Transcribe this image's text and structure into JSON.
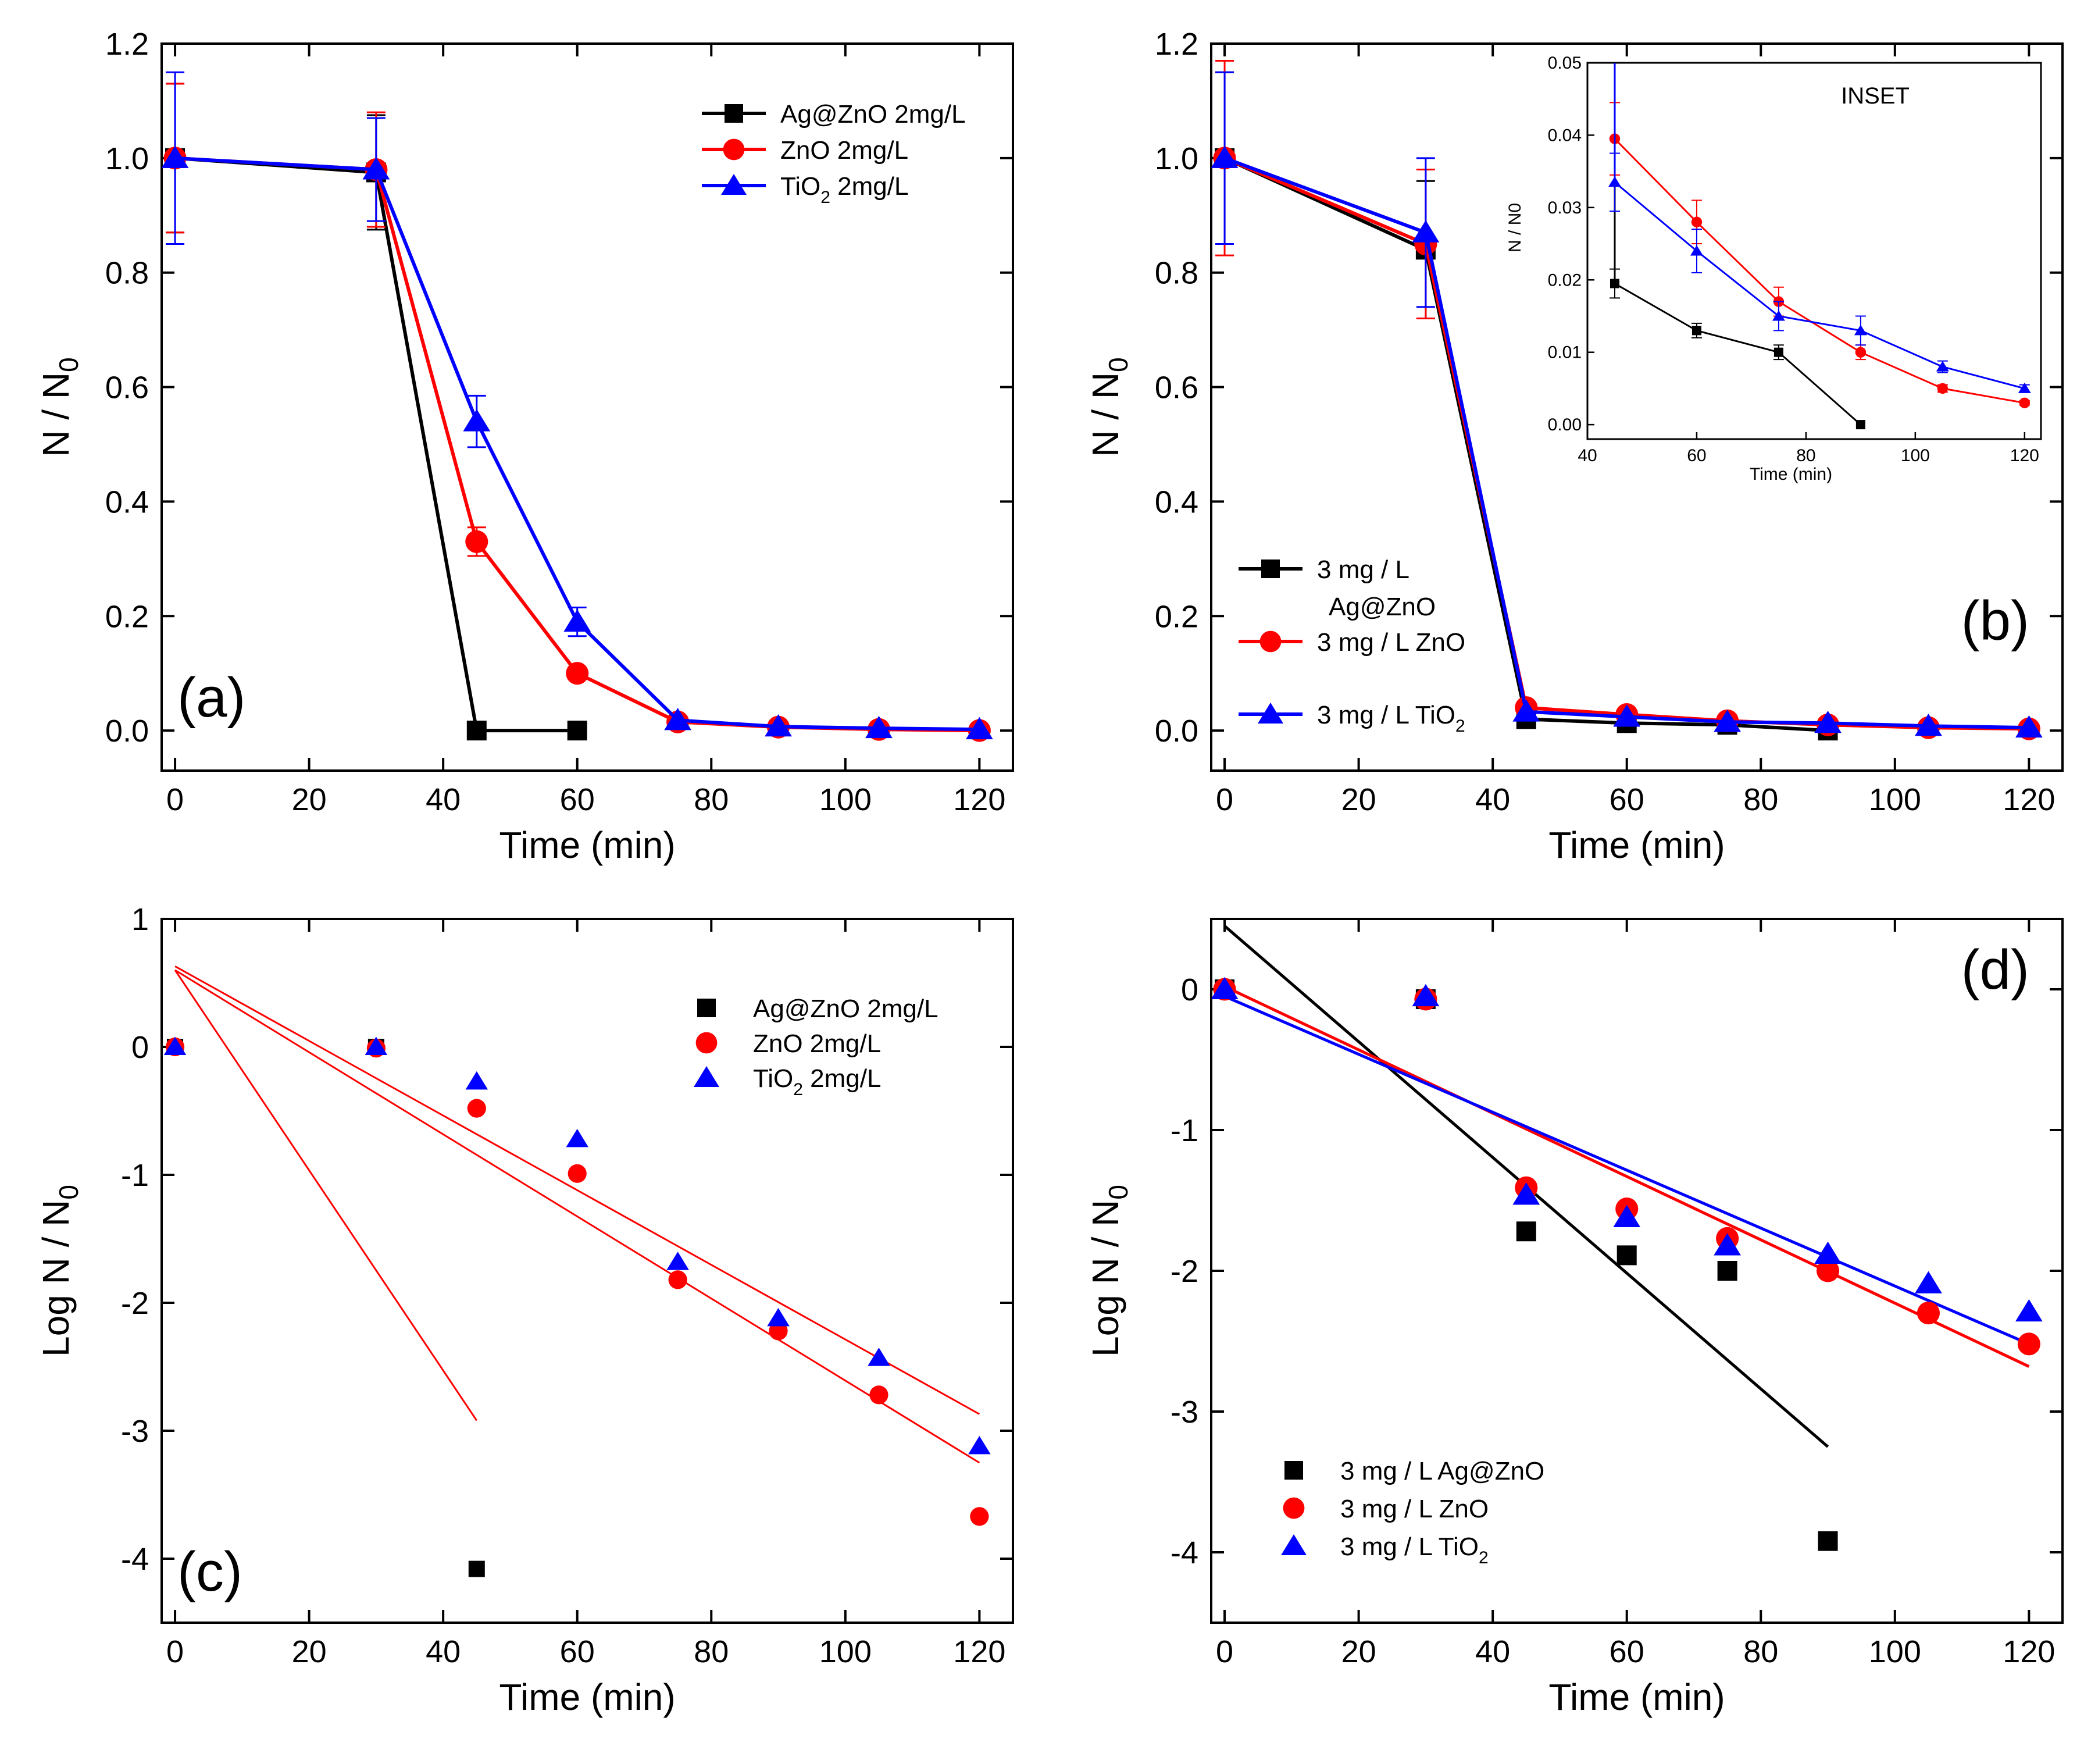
{
  "figure": {
    "series_names": [
      "Ag@ZnO 2mg/L",
      "ZnO 2mg/L",
      "TiO2 2mg/L"
    ],
    "colors": {
      "agzno": "#000000",
      "zno": "#ff0000",
      "tio2": "#0000ff"
    }
  },
  "chart_data": [
    {
      "id": "a",
      "type": "line",
      "panel_label": "(a)",
      "xlabel": "Time (min)",
      "ylabel": "N / N0",
      "xlim": [
        -2,
        125
      ],
      "ylim": [
        -0.07,
        1.2
      ],
      "xticks": [
        0,
        20,
        40,
        60,
        80,
        100,
        120
      ],
      "yticks": [
        "0.0",
        "0.2",
        "0.4",
        "0.6",
        "0.8",
        "1.0",
        "1.2"
      ],
      "legend_position": "top-right",
      "series": [
        {
          "name": "Ag@ZnO 2mg/L",
          "label": "Ag@ZnO 2mg/L",
          "color": "#000000",
          "marker": "square",
          "x": [
            0,
            30,
            45,
            60
          ],
          "y": [
            1.0,
            0.975,
            0.0,
            0.0
          ],
          "err": [
            0.13,
            0.1,
            0.0,
            0.0
          ]
        },
        {
          "name": "ZnO 2mg/L",
          "label": "ZnO 2mg/L",
          "color": "#ff0000",
          "marker": "circle",
          "x": [
            0,
            30,
            45,
            60,
            75,
            90,
            105,
            120
          ],
          "y": [
            1.0,
            0.98,
            0.33,
            0.1,
            0.015,
            0.006,
            0.002,
            0.0
          ],
          "err": [
            0.13,
            0.1,
            0.025,
            0.015,
            0.004,
            0.002,
            0.001,
            0.0
          ]
        },
        {
          "name": "TiO2 2mg/L",
          "label_main": "TiO",
          "label_sub": "2",
          "label_rest": " 2mg/L",
          "color": "#0000ff",
          "marker": "triangle",
          "x": [
            0,
            30,
            45,
            60,
            75,
            90,
            105,
            120
          ],
          "y": [
            1.0,
            0.98,
            0.54,
            0.19,
            0.018,
            0.007,
            0.004,
            0.002
          ],
          "err": [
            0.15,
            0.09,
            0.045,
            0.025,
            0.004,
            0.002,
            0.001,
            0.001
          ]
        }
      ]
    },
    {
      "id": "b",
      "type": "line",
      "panel_label": "(b)",
      "xlabel": "Time (min)",
      "ylabel": "N / N0",
      "xlim": [
        -2,
        125
      ],
      "ylim": [
        -0.07,
        1.2
      ],
      "xticks": [
        0,
        20,
        40,
        60,
        80,
        100,
        120
      ],
      "yticks": [
        "0.0",
        "0.2",
        "0.4",
        "0.6",
        "0.8",
        "1.0",
        "1.2"
      ],
      "legend_position": "bottom-left",
      "series": [
        {
          "name": "3 mg / L Ag@ZnO",
          "label_line1": "3 mg / L",
          "label_line2": "Ag@ZnO",
          "color": "#000000",
          "marker": "square",
          "x": [
            0,
            30,
            45,
            60,
            75,
            90
          ],
          "y": [
            1.0,
            0.84,
            0.02,
            0.013,
            0.01,
            0.0
          ],
          "err": [
            0.15,
            0.12,
            0.002,
            0.001,
            0.001,
            0.0
          ]
        },
        {
          "name": "3 mg / L ZnO",
          "label": "3 mg / L ZnO",
          "color": "#ff0000",
          "marker": "circle",
          "x": [
            0,
            30,
            45,
            60,
            75,
            90,
            105,
            120
          ],
          "y": [
            1.0,
            0.85,
            0.04,
            0.028,
            0.017,
            0.01,
            0.005,
            0.003
          ],
          "err": [
            0.17,
            0.13,
            0.005,
            0.003,
            0.002,
            0.001,
            0.001,
            0.0
          ]
        },
        {
          "name": "3 mg / L TiO2",
          "label_main": "3 mg / L TiO",
          "label_sub": "2",
          "color": "#0000ff",
          "marker": "triangle",
          "x": [
            0,
            30,
            45,
            60,
            75,
            90,
            105,
            120
          ],
          "y": [
            1.0,
            0.87,
            0.033,
            0.024,
            0.015,
            0.013,
            0.008,
            0.005
          ],
          "err": [
            0.15,
            0.13,
            0.004,
            0.003,
            0.002,
            0.002,
            0.001,
            0.001
          ]
        }
      ],
      "inset": {
        "title": "INSET",
        "xlabel": "Time (min)",
        "ylabel": "N / N0",
        "xlim": [
          40,
          123
        ],
        "ylim": [
          -0.002,
          0.05
        ],
        "xticks": [
          40,
          60,
          80,
          100,
          120
        ],
        "yticks": [
          "0.00",
          "0.01",
          "0.02",
          "0.03",
          "0.04",
          "0.05"
        ],
        "series": [
          {
            "name": "Ag@ZnO",
            "color": "#000000",
            "marker": "square",
            "x": [
              45,
              60,
              75,
              90
            ],
            "y": [
              0.0195,
              0.013,
              0.01,
              0.0
            ],
            "err": [
              0.002,
              0.001,
              0.001,
              0.0
            ],
            "line_from": {
              "x": 45,
              "y": 0.05
            }
          },
          {
            "name": "ZnO",
            "color": "#ff0000",
            "marker": "circle",
            "x": [
              45,
              60,
              75,
              90,
              105,
              120
            ],
            "y": [
              0.0395,
              0.028,
              0.017,
              0.01,
              0.005,
              0.003
            ],
            "err": [
              0.005,
              0.003,
              0.002,
              0.001,
              0.0005,
              0.0003
            ],
            "line_from": {
              "x": 45,
              "y": 0.05
            }
          },
          {
            "name": "TiO2",
            "color": "#0000ff",
            "marker": "triangle",
            "x": [
              45,
              60,
              75,
              90,
              105,
              120
            ],
            "y": [
              0.0335,
              0.024,
              0.015,
              0.013,
              0.008,
              0.005
            ],
            "err": [
              0.004,
              0.003,
              0.002,
              0.002,
              0.0008,
              0.0005
            ],
            "line_from": {
              "x": 45,
              "y": 0.05
            }
          }
        ]
      }
    },
    {
      "id": "c",
      "type": "scatter",
      "panel_label": "(c)",
      "xlabel": "Time (min)",
      "ylabel": "Log N / N0",
      "xlim": [
        -2,
        125
      ],
      "ylim": [
        -4.5,
        1.0
      ],
      "xticks": [
        0,
        20,
        40,
        60,
        80,
        100,
        120
      ],
      "yticks": [
        "-4",
        "-3",
        "-2",
        "-1",
        "0",
        "1"
      ],
      "legend_position": "top-right",
      "series": [
        {
          "name": "Ag@ZnO 2mg/L",
          "label": "Ag@ZnO 2mg/L",
          "color": "#000000",
          "marker": "square",
          "x": [
            0,
            30,
            45
          ],
          "y": [
            0.0,
            0.0,
            -4.08
          ]
        },
        {
          "name": "ZnO 2mg/L",
          "label": "ZnO 2mg/L",
          "color": "#ff0000",
          "marker": "circle",
          "x": [
            0,
            30,
            45,
            60,
            75,
            90,
            105,
            120
          ],
          "y": [
            0.0,
            -0.01,
            -0.48,
            -0.99,
            -1.82,
            -2.22,
            -2.72,
            -3.67
          ]
        },
        {
          "name": "TiO2 2mg/L",
          "label_main": "TiO",
          "label_sub": "2",
          "label_rest": " 2mg/L",
          "color": "#0000ff",
          "marker": "triangle",
          "x": [
            0,
            30,
            45,
            60,
            75,
            90,
            105,
            120
          ],
          "y": [
            0.0,
            0.0,
            -0.27,
            -0.72,
            -1.68,
            -2.12,
            -2.43,
            -3.12
          ]
        }
      ],
      "fits": [
        {
          "color": "#ff0000",
          "x": [
            0,
            45
          ],
          "y": [
            0.6,
            -2.92
          ]
        },
        {
          "color": "#ff0000",
          "x": [
            0,
            120
          ],
          "y": [
            0.6,
            -3.25
          ]
        },
        {
          "color": "#ff0000",
          "x": [
            0,
            120
          ],
          "y": [
            0.63,
            -2.87
          ]
        }
      ]
    },
    {
      "id": "d",
      "type": "scatter",
      "panel_label": "(d)",
      "xlabel": "Time (min)",
      "ylabel": "Log N / N0",
      "xlim": [
        -2,
        125
      ],
      "ylim": [
        -4.5,
        0.5
      ],
      "xticks": [
        0,
        20,
        40,
        60,
        80,
        100,
        120
      ],
      "yticks": [
        "-4",
        "-3",
        "-2",
        "-1",
        "0"
      ],
      "legend_position": "bottom-left",
      "series": [
        {
          "name": "3 mg / L Ag@ZnO",
          "label": "3 mg / L Ag@ZnO",
          "color": "#000000",
          "marker": "square",
          "x": [
            0,
            30,
            45,
            60,
            75,
            90
          ],
          "y": [
            0.0,
            -0.07,
            -1.72,
            -1.89,
            -2.0,
            -3.92
          ]
        },
        {
          "name": "3 mg / L ZnO",
          "label": "3 mg / L ZnO",
          "color": "#ff0000",
          "marker": "circle",
          "x": [
            0,
            30,
            45,
            60,
            75,
            90,
            105,
            120
          ],
          "y": [
            0.0,
            -0.07,
            -1.41,
            -1.56,
            -1.77,
            -2.0,
            -2.3,
            -2.52
          ]
        },
        {
          "name": "3 mg / L TiO2",
          "label_main": "3 mg / L TiO",
          "label_sub": "2",
          "color": "#0000ff",
          "marker": "triangle",
          "x": [
            0,
            30,
            45,
            60,
            75,
            90,
            105,
            120
          ],
          "y": [
            0.0,
            -0.05,
            -1.46,
            -1.62,
            -1.82,
            -1.88,
            -2.09,
            -2.29
          ]
        }
      ],
      "fits": [
        {
          "color": "#000000",
          "x": [
            0,
            90
          ],
          "y": [
            0.45,
            -3.25
          ]
        },
        {
          "color": "#ff0000",
          "x": [
            0,
            120
          ],
          "y": [
            0.02,
            -2.68
          ]
        },
        {
          "color": "#0000ff",
          "x": [
            0,
            120
          ],
          "y": [
            -0.05,
            -2.52
          ]
        }
      ]
    }
  ]
}
